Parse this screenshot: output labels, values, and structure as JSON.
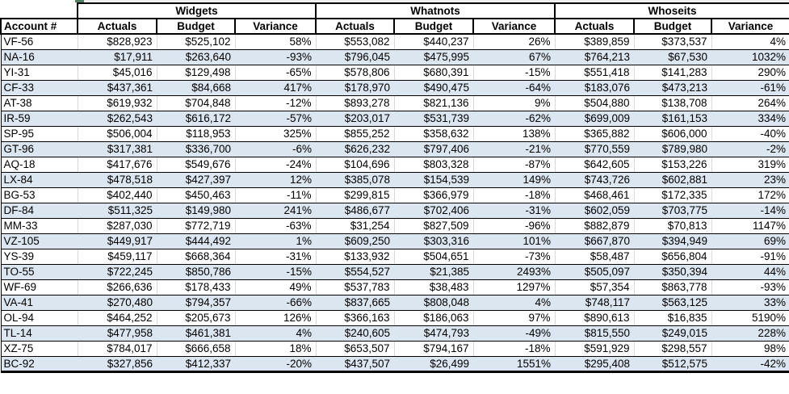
{
  "selection": {
    "fill_handle_color": "#4f7f63"
  },
  "table": {
    "account_header": "Account #",
    "groups": [
      "Widgets",
      "Whatnots",
      "Whoseits"
    ],
    "sub_headers": [
      "Actuals",
      "Budget",
      "Variance"
    ],
    "colors": {
      "stripe": "#dce6f1",
      "gridline": "#d9d9d9",
      "border": "#000000",
      "text": "#000000"
    },
    "rows": [
      {
        "account": "VF-56",
        "cells": [
          "$828,923",
          "$525,102",
          "58%",
          "$553,082",
          "$440,237",
          "26%",
          "$389,859",
          "$373,537",
          "4%"
        ]
      },
      {
        "account": "NA-16",
        "cells": [
          "$17,911",
          "$263,640",
          "-93%",
          "$796,045",
          "$475,995",
          "67%",
          "$764,213",
          "$67,530",
          "1032%"
        ]
      },
      {
        "account": "YI-31",
        "cells": [
          "$45,016",
          "$129,498",
          "-65%",
          "$578,806",
          "$680,391",
          "-15%",
          "$551,418",
          "$141,283",
          "290%"
        ]
      },
      {
        "account": "CF-33",
        "cells": [
          "$437,361",
          "$84,668",
          "417%",
          "$178,970",
          "$490,475",
          "-64%",
          "$183,076",
          "$473,213",
          "-61%"
        ]
      },
      {
        "account": "AT-38",
        "cells": [
          "$619,932",
          "$704,848",
          "-12%",
          "$893,278",
          "$821,136",
          "9%",
          "$504,880",
          "$138,708",
          "264%"
        ]
      },
      {
        "account": "IR-59",
        "cells": [
          "$262,543",
          "$616,172",
          "-57%",
          "$203,017",
          "$531,739",
          "-62%",
          "$699,009",
          "$161,153",
          "334%"
        ]
      },
      {
        "account": "SP-95",
        "cells": [
          "$506,004",
          "$118,953",
          "325%",
          "$855,252",
          "$358,632",
          "138%",
          "$365,882",
          "$606,000",
          "-40%"
        ]
      },
      {
        "account": "GT-96",
        "cells": [
          "$317,381",
          "$336,700",
          "-6%",
          "$626,232",
          "$797,406",
          "-21%",
          "$770,559",
          "$789,980",
          "-2%"
        ]
      },
      {
        "account": "AQ-18",
        "cells": [
          "$417,676",
          "$549,676",
          "-24%",
          "$104,696",
          "$803,328",
          "-87%",
          "$642,605",
          "$153,226",
          "319%"
        ]
      },
      {
        "account": "LX-84",
        "cells": [
          "$478,518",
          "$427,397",
          "12%",
          "$385,078",
          "$154,539",
          "149%",
          "$743,726",
          "$602,881",
          "23%"
        ]
      },
      {
        "account": "BG-53",
        "cells": [
          "$402,440",
          "$450,463",
          "-11%",
          "$299,815",
          "$366,979",
          "-18%",
          "$468,461",
          "$172,335",
          "172%"
        ]
      },
      {
        "account": "DF-84",
        "cells": [
          "$511,325",
          "$149,980",
          "241%",
          "$486,677",
          "$702,406",
          "-31%",
          "$602,059",
          "$703,775",
          "-14%"
        ]
      },
      {
        "account": "MM-33",
        "cells": [
          "$287,030",
          "$772,719",
          "-63%",
          "$31,254",
          "$827,509",
          "-96%",
          "$882,879",
          "$70,813",
          "1147%"
        ]
      },
      {
        "account": "VZ-105",
        "cells": [
          "$449,917",
          "$444,492",
          "1%",
          "$609,250",
          "$303,316",
          "101%",
          "$667,870",
          "$394,949",
          "69%"
        ]
      },
      {
        "account": "YS-39",
        "cells": [
          "$459,117",
          "$668,364",
          "-31%",
          "$133,932",
          "$504,651",
          "-73%",
          "$58,487",
          "$656,804",
          "-91%"
        ]
      },
      {
        "account": "TO-55",
        "cells": [
          "$722,245",
          "$850,786",
          "-15%",
          "$554,527",
          "$21,385",
          "2493%",
          "$505,097",
          "$350,394",
          "44%"
        ]
      },
      {
        "account": "WF-69",
        "cells": [
          "$266,636",
          "$178,433",
          "49%",
          "$537,783",
          "$38,483",
          "1297%",
          "$57,354",
          "$863,778",
          "-93%"
        ]
      },
      {
        "account": "VA-41",
        "cells": [
          "$270,480",
          "$794,357",
          "-66%",
          "$837,665",
          "$808,048",
          "4%",
          "$748,117",
          "$563,125",
          "33%"
        ]
      },
      {
        "account": "OL-94",
        "cells": [
          "$464,252",
          "$205,673",
          "126%",
          "$366,163",
          "$186,063",
          "97%",
          "$890,613",
          "$16,835",
          "5190%"
        ]
      },
      {
        "account": "TL-14",
        "cells": [
          "$477,958",
          "$461,381",
          "4%",
          "$240,605",
          "$474,793",
          "-49%",
          "$815,550",
          "$249,015",
          "228%"
        ]
      },
      {
        "account": "XZ-75",
        "cells": [
          "$784,017",
          "$666,658",
          "18%",
          "$653,507",
          "$794,167",
          "-18%",
          "$591,929",
          "$298,557",
          "98%"
        ]
      },
      {
        "account": "BC-92",
        "cells": [
          "$327,856",
          "$412,337",
          "-20%",
          "$437,507",
          "$26,499",
          "1551%",
          "$295,408",
          "$512,575",
          "-42%"
        ]
      }
    ]
  }
}
